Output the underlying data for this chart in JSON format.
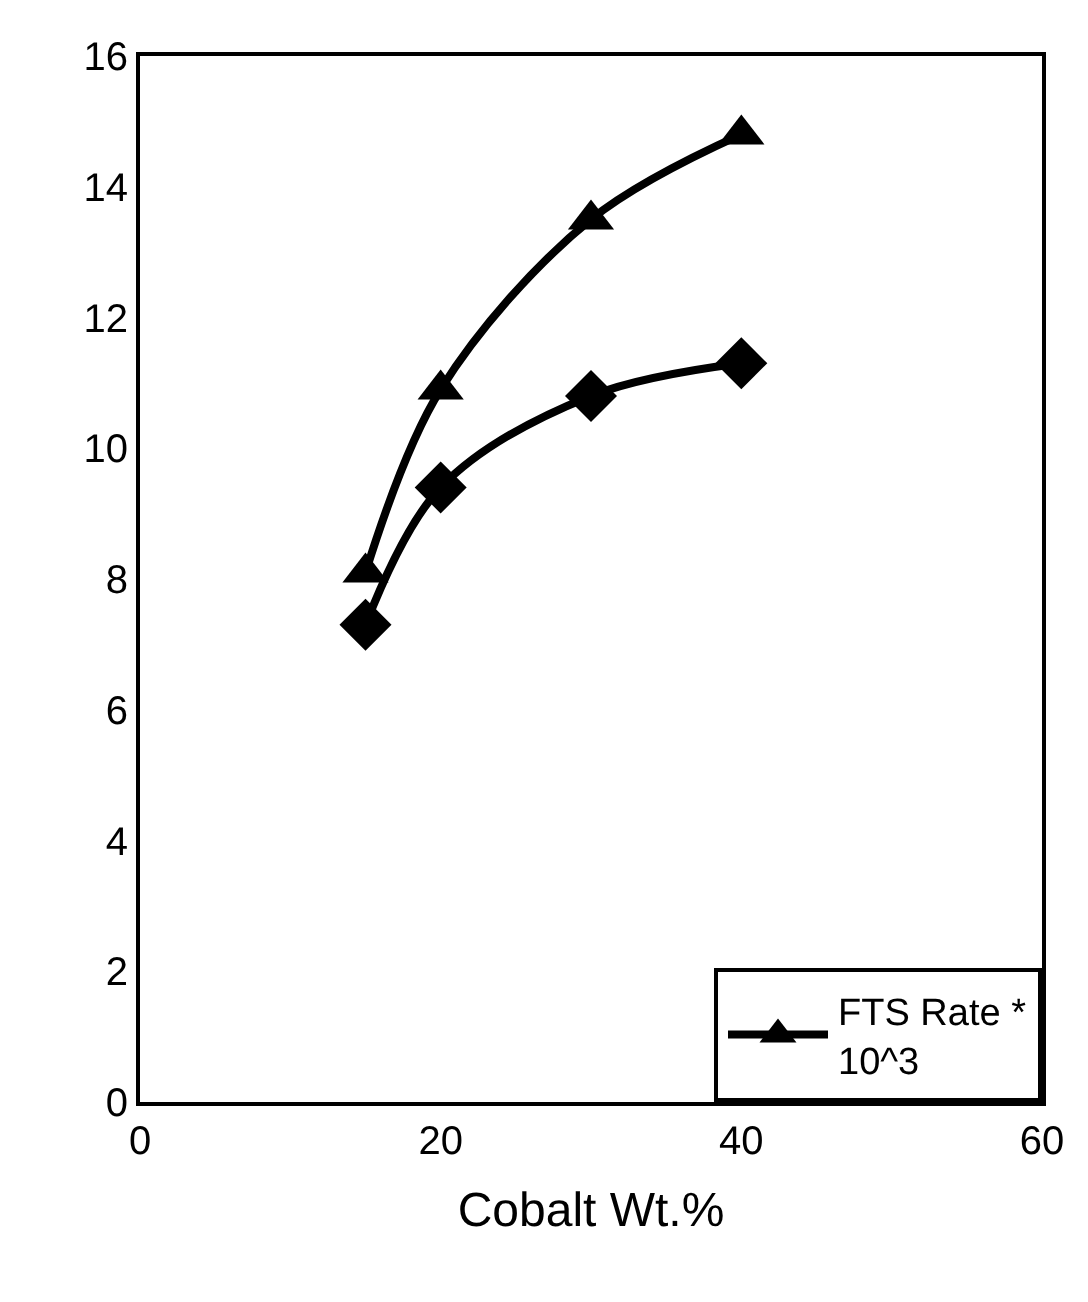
{
  "chart_data": {
    "type": "line",
    "xlabel": "Cobalt Wt.%",
    "x": [
      15,
      20,
      30,
      40
    ],
    "series": [
      {
        "name": "FTS Rate * 10^3",
        "color": "#000000",
        "marker": "triangle",
        "values": [
          8.1,
          10.9,
          13.5,
          14.8
        ]
      },
      {
        "color": "#000000",
        "marker": "diamond",
        "values": [
          7.3,
          9.4,
          10.8,
          11.3
        ]
      }
    ],
    "xlim": [
      0,
      60
    ],
    "xticks": [
      0,
      20,
      40,
      60
    ],
    "ylim": [
      0,
      16
    ],
    "yticks": [
      0,
      2,
      4,
      6,
      8,
      10,
      12,
      14,
      16
    ],
    "legend": "bottom right",
    "line_style": "solid"
  }
}
